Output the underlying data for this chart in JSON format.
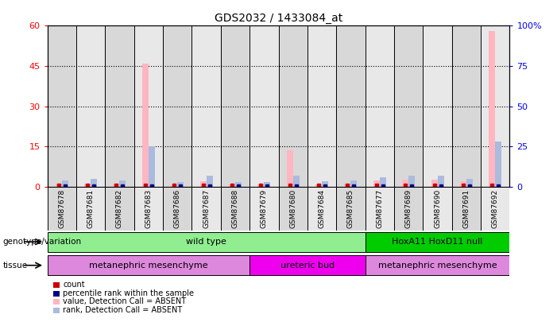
{
  "title": "GDS2032 / 1433084_at",
  "samples": [
    "GSM87678",
    "GSM87681",
    "GSM87682",
    "GSM87683",
    "GSM87686",
    "GSM87687",
    "GSM87688",
    "GSM87679",
    "GSM87680",
    "GSM87684",
    "GSM87685",
    "GSM87677",
    "GSM87689",
    "GSM87690",
    "GSM87691",
    "GSM87692"
  ],
  "values": [
    1.2,
    1.3,
    1.2,
    46.0,
    0.7,
    2.0,
    0.8,
    0.9,
    13.5,
    0.8,
    1.2,
    2.2,
    2.5,
    2.5,
    2.0,
    58.0
  ],
  "ranks_pct": [
    4.0,
    5.0,
    4.0,
    25.0,
    3.0,
    7.0,
    3.0,
    3.0,
    7.0,
    3.5,
    4.0,
    6.0,
    7.0,
    7.0,
    5.0,
    28.0
  ],
  "ylim_left": [
    0,
    60
  ],
  "ylim_right": [
    0,
    100
  ],
  "yticks_left": [
    0,
    15,
    30,
    45,
    60
  ],
  "yticks_right": [
    0,
    25,
    50,
    75,
    100
  ],
  "ytick_labels_left": [
    "0",
    "15",
    "30",
    "45",
    "60"
  ],
  "ytick_labels_right": [
    "0",
    "25",
    "50",
    "75",
    "100%"
  ],
  "genotype_groups": [
    {
      "label": "wild type",
      "start": 0,
      "end": 10,
      "color": "#90ee90"
    },
    {
      "label": "HoxA11 HoxD11 null",
      "start": 11,
      "end": 15,
      "color": "#00cc00"
    }
  ],
  "tissue_groups": [
    {
      "label": "metanephric mesenchyme",
      "start": 0,
      "end": 6,
      "color": "#dd88dd"
    },
    {
      "label": "ureteric bud",
      "start": 7,
      "end": 10,
      "color": "#ee00ee"
    },
    {
      "label": "metanephric mesenchyme",
      "start": 11,
      "end": 15,
      "color": "#dd88dd"
    }
  ],
  "bar_color_value_absent": "#ffb6c1",
  "bar_color_rank_absent": "#aabbdd",
  "count_color": "#cc0000",
  "percentile_color": "#000088",
  "bg_color": "#ffffff",
  "col_bg_even": "#d8d8d8",
  "col_bg_odd": "#e8e8e8",
  "legend_items": [
    {
      "label": "count",
      "color": "#cc0000"
    },
    {
      "label": "percentile rank within the sample",
      "color": "#000088"
    },
    {
      "label": "value, Detection Call = ABSENT",
      "color": "#ffb6c1"
    },
    {
      "label": "rank, Detection Call = ABSENT",
      "color": "#aabbdd"
    }
  ]
}
